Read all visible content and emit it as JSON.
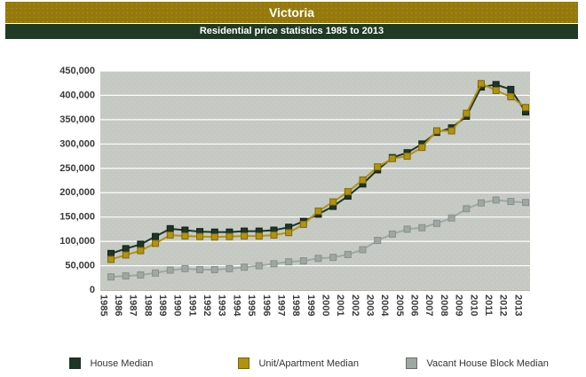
{
  "header": {
    "title": "Victoria",
    "subtitle": "Residential price statistics 1985 to 2013",
    "title_bg": "#95790b",
    "subtitle_bg": "#203a26"
  },
  "chart_data": {
    "type": "line",
    "title": "Victoria",
    "subtitle": "Residential price statistics 1985 to 2013",
    "x": [
      1985,
      1986,
      1987,
      1988,
      1989,
      1990,
      1991,
      1992,
      1993,
      1994,
      1995,
      1996,
      1997,
      1998,
      1999,
      2000,
      2001,
      2002,
      2003,
      2004,
      2005,
      2006,
      2007,
      2008,
      2009,
      2010,
      2011,
      2012,
      2013
    ],
    "series": [
      {
        "name": "House Median",
        "color": "#1d3627",
        "marker_border": "#101f16",
        "values": [
          75000,
          85000,
          94000,
          110000,
          126000,
          123000,
          120000,
          119000,
          119000,
          121000,
          121000,
          123000,
          129000,
          141000,
          156000,
          172000,
          193000,
          218000,
          247000,
          272000,
          282000,
          300000,
          324000,
          333000,
          357000,
          417000,
          422000,
          412000,
          366000
        ]
      },
      {
        "name": "Unit/Apartment Median",
        "color": "#b2930e",
        "marker_border": "#806908",
        "values": [
          63000,
          72000,
          81000,
          96000,
          113000,
          111000,
          110000,
          109000,
          110000,
          111000,
          111000,
          113000,
          118000,
          135000,
          162000,
          181000,
          202000,
          226000,
          253000,
          270000,
          275000,
          293000,
          327000,
          327000,
          363000,
          424000,
          410000,
          397000,
          375000
        ]
      },
      {
        "name": "Vacant House Block Median",
        "color": "#9ea8a2",
        "marker_border": "#879089",
        "values": [
          27000,
          29000,
          31000,
          35000,
          41000,
          44000,
          42000,
          42000,
          44000,
          47000,
          50000,
          54000,
          58000,
          60000,
          65000,
          67000,
          73000,
          83000,
          102000,
          115000,
          125000,
          128000,
          137000,
          148000,
          167000,
          179000,
          185000,
          182000,
          180000
        ]
      }
    ],
    "xlabel": "",
    "ylabel": "",
    "ylim": [
      0,
      450000
    ],
    "ytick_step": 50000,
    "ytick_labels": [
      "0",
      "50,000",
      "100,000",
      "150,000",
      "200,000",
      "250,000",
      "300,000",
      "350,000",
      "400,000",
      "450,000"
    ],
    "grid": "horizontal white gridlines on gray plot background",
    "plot_bg": "#c5c9c4",
    "gridline_color": "#ffffff",
    "axis_label_color": "#3a3a3a",
    "marker": "square",
    "legend_position": "bottom"
  }
}
